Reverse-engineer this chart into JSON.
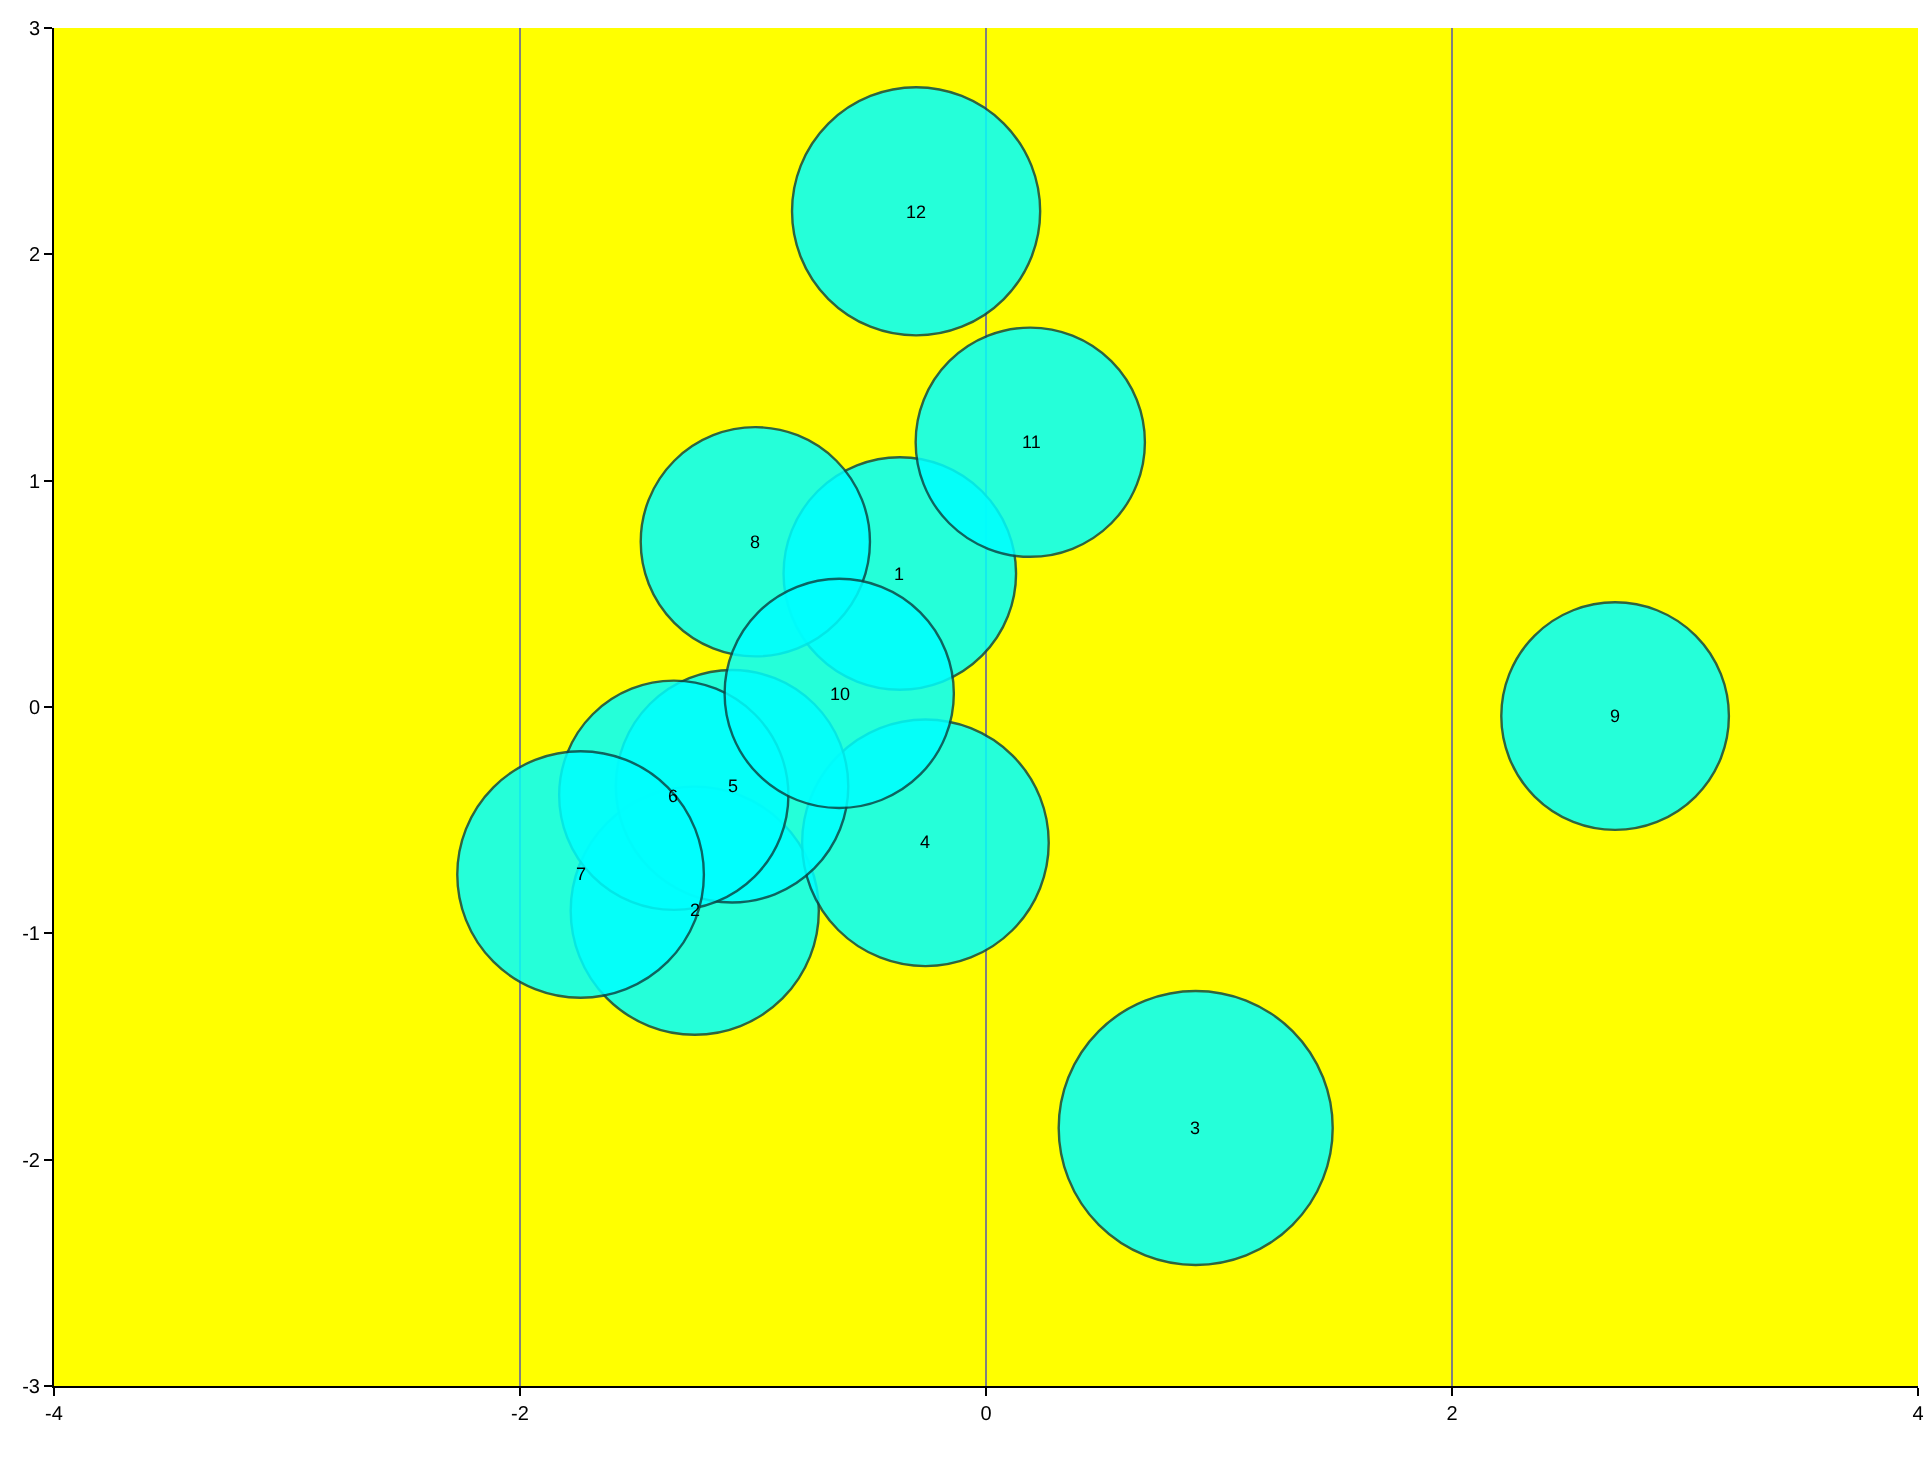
{
  "chart_data": {
    "type": "bubble",
    "x": [
      -0.37,
      -1.25,
      0.9,
      -0.26,
      -1.09,
      -1.34,
      -1.74,
      -0.99,
      2.7,
      -0.63,
      0.19,
      -0.3
    ],
    "values": [
      0.59,
      -0.9,
      -1.86,
      -0.6,
      -0.35,
      -0.39,
      -0.74,
      0.73,
      -0.04,
      0.06,
      1.17,
      2.19
    ],
    "sizes": [
      0.72,
      0.82,
      1,
      0.81,
      0.72,
      0.7,
      0.81,
      0.7,
      0.69,
      0.7,
      0.7,
      0.82
    ],
    "color": "#00ffff",
    "xlim": [
      -4,
      4
    ],
    "xticks": [
      -4,
      -2,
      0,
      2,
      4
    ],
    "ylim": [
      -3,
      3
    ],
    "yticks": [
      -3,
      -2,
      -1,
      0,
      1,
      2,
      3
    ],
    "grid": "x",
    "legend": false,
    "annotations": [
      {
        "text": "1",
        "x": -0.37,
        "y": 0.59
      },
      {
        "text": "2",
        "x": -1.25,
        "y": -0.9
      },
      {
        "text": "3",
        "x": 0.9,
        "y": -1.86
      },
      {
        "text": "4",
        "x": -0.26,
        "y": -0.6
      },
      {
        "text": "5",
        "x": -1.09,
        "y": -0.35
      },
      {
        "text": "6",
        "x": -1.34,
        "y": -0.39
      },
      {
        "text": "7",
        "x": -1.74,
        "y": -0.74
      },
      {
        "text": "8",
        "x": -0.99,
        "y": 0.73
      },
      {
        "text": "9",
        "x": 2.7,
        "y": -0.04
      },
      {
        "text": "10",
        "x": -0.63,
        "y": 0.06
      },
      {
        "text": "11",
        "x": 0.19,
        "y": 1.17
      },
      {
        "text": "12",
        "x": -0.3,
        "y": 2.19
      }
    ]
  }
}
